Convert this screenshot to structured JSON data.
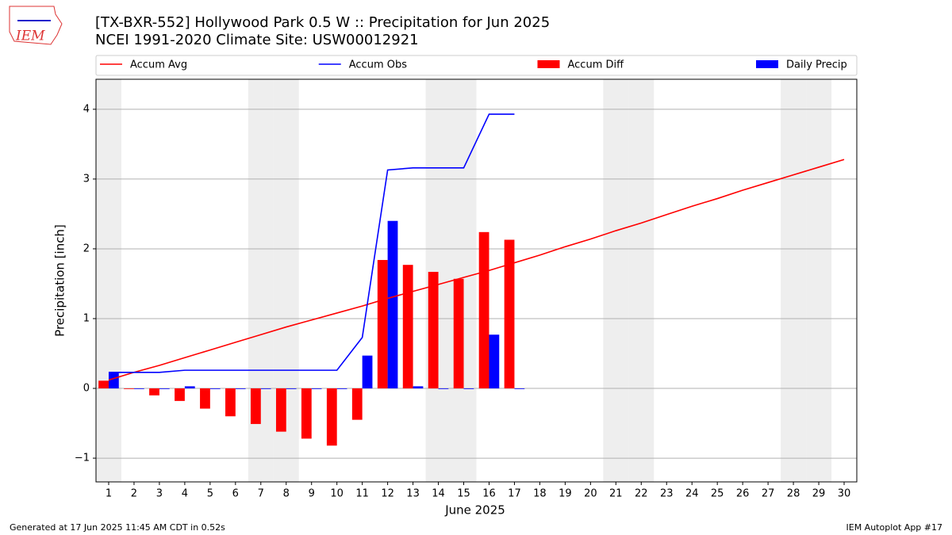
{
  "logo": "IEM",
  "chart_data": {
    "type": "bar",
    "title": "[TX-BXR-552] Hollywood Park 0.5 W :: Precipitation for Jun 2025",
    "subtitle": "NCEI 1991-2020 Climate Site: USW00012921",
    "xlabel": "June 2025",
    "ylabel": "Precipitation [inch]",
    "xlim": [
      0.5,
      30.5
    ],
    "ylim": [
      -1.34,
      4.43
    ],
    "xticks": [
      1,
      2,
      3,
      4,
      5,
      6,
      7,
      8,
      9,
      10,
      11,
      12,
      13,
      14,
      15,
      16,
      17,
      18,
      19,
      20,
      21,
      22,
      23,
      24,
      25,
      26,
      27,
      28,
      29,
      30
    ],
    "yticks": [
      {
        "value": -1,
        "label": "−1"
      },
      0,
      1,
      2,
      3,
      4
    ],
    "grid": true,
    "weekend_shading": true,
    "series": [
      {
        "name": "Accum Avg",
        "kind": "line",
        "color": "#ff0000",
        "x": [
          1,
          2,
          3,
          4,
          5,
          6,
          7,
          8,
          9,
          10,
          11,
          12,
          13,
          14,
          15,
          16,
          17,
          18,
          19,
          20,
          21,
          22,
          23,
          24,
          25,
          26,
          27,
          28,
          29,
          30
        ],
        "values": [
          0.12,
          0.23,
          0.33,
          0.44,
          0.55,
          0.66,
          0.77,
          0.88,
          0.98,
          1.08,
          1.18,
          1.29,
          1.39,
          1.49,
          1.59,
          1.69,
          1.8,
          1.91,
          2.03,
          2.14,
          2.26,
          2.37,
          2.49,
          2.61,
          2.72,
          2.84,
          2.95,
          3.06,
          3.17,
          3.28
        ]
      },
      {
        "name": "Accum Obs",
        "kind": "line",
        "color": "#0000ff",
        "x": [
          1,
          2,
          3,
          4,
          5,
          6,
          7,
          8,
          9,
          10,
          11,
          12,
          13,
          14,
          15,
          16,
          17
        ],
        "values": [
          0.23,
          0.23,
          0.23,
          0.26,
          0.26,
          0.26,
          0.26,
          0.26,
          0.26,
          0.26,
          0.73,
          3.13,
          3.16,
          3.16,
          3.16,
          3.93,
          3.93
        ]
      },
      {
        "name": "Accum Diff",
        "kind": "bar",
        "color": "#ff0000",
        "x": [
          1,
          2,
          3,
          4,
          5,
          6,
          7,
          8,
          9,
          10,
          11,
          12,
          13,
          14,
          15,
          16,
          17
        ],
        "values": [
          0.11,
          0.0,
          -0.1,
          -0.18,
          -0.29,
          -0.4,
          -0.51,
          -0.62,
          -0.72,
          -0.82,
          -0.45,
          1.84,
          1.77,
          1.67,
          1.57,
          2.24,
          2.13
        ]
      },
      {
        "name": "Daily Precip",
        "kind": "bar",
        "color": "#0000ff",
        "x": [
          1,
          2,
          3,
          4,
          5,
          6,
          7,
          8,
          9,
          10,
          11,
          12,
          13,
          14,
          15,
          16,
          17
        ],
        "values": [
          0.23,
          0,
          0,
          0.03,
          0,
          0,
          0,
          0,
          0,
          0,
          0.47,
          2.4,
          0.03,
          0,
          0,
          0.77,
          0
        ]
      }
    ]
  },
  "footer_left": "Generated at 17 Jun 2025 11:45 AM CDT in 0.52s",
  "footer_right": "IEM Autoplot App #17"
}
